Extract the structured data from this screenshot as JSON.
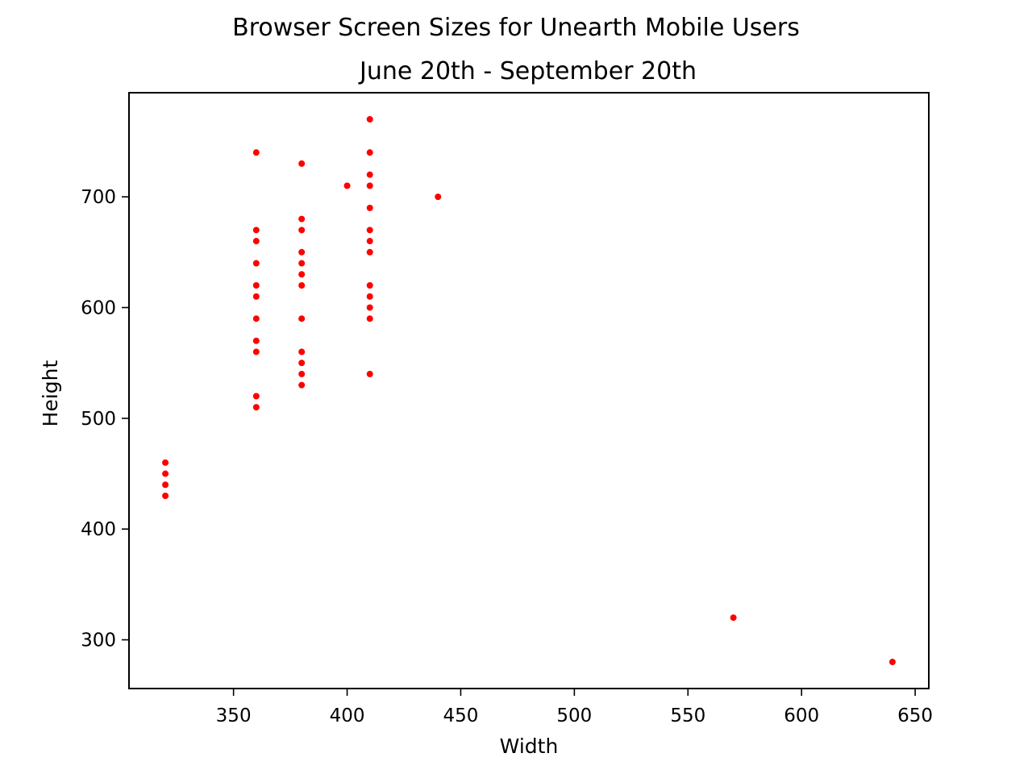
{
  "chart_data": {
    "type": "scatter",
    "title": "Browser Screen Sizes for Unearth Mobile Users",
    "subtitle": "June 20th - September 20th",
    "xlabel": "Width",
    "ylabel": "Height",
    "xlim": [
      304,
      656
    ],
    "ylim": [
      256,
      794
    ],
    "xticks": [
      350,
      400,
      450,
      500,
      550,
      600,
      650
    ],
    "yticks": [
      300,
      400,
      500,
      600,
      700
    ],
    "grid": false,
    "marker_color": "#ff0000",
    "points": [
      {
        "x": 320,
        "y": 460
      },
      {
        "x": 320,
        "y": 450
      },
      {
        "x": 320,
        "y": 440
      },
      {
        "x": 320,
        "y": 430
      },
      {
        "x": 360,
        "y": 740
      },
      {
        "x": 360,
        "y": 670
      },
      {
        "x": 360,
        "y": 660
      },
      {
        "x": 360,
        "y": 640
      },
      {
        "x": 360,
        "y": 620
      },
      {
        "x": 360,
        "y": 610
      },
      {
        "x": 360,
        "y": 590
      },
      {
        "x": 360,
        "y": 570
      },
      {
        "x": 360,
        "y": 560
      },
      {
        "x": 360,
        "y": 520
      },
      {
        "x": 360,
        "y": 510
      },
      {
        "x": 380,
        "y": 730
      },
      {
        "x": 380,
        "y": 680
      },
      {
        "x": 380,
        "y": 670
      },
      {
        "x": 380,
        "y": 650
      },
      {
        "x": 380,
        "y": 640
      },
      {
        "x": 380,
        "y": 630
      },
      {
        "x": 380,
        "y": 620
      },
      {
        "x": 380,
        "y": 590
      },
      {
        "x": 380,
        "y": 560
      },
      {
        "x": 380,
        "y": 550
      },
      {
        "x": 380,
        "y": 540
      },
      {
        "x": 380,
        "y": 530
      },
      {
        "x": 400,
        "y": 710
      },
      {
        "x": 410,
        "y": 770
      },
      {
        "x": 410,
        "y": 740
      },
      {
        "x": 410,
        "y": 720
      },
      {
        "x": 410,
        "y": 710
      },
      {
        "x": 410,
        "y": 690
      },
      {
        "x": 410,
        "y": 670
      },
      {
        "x": 410,
        "y": 660
      },
      {
        "x": 410,
        "y": 650
      },
      {
        "x": 410,
        "y": 620
      },
      {
        "x": 410,
        "y": 610
      },
      {
        "x": 410,
        "y": 600
      },
      {
        "x": 410,
        "y": 590
      },
      {
        "x": 410,
        "y": 540
      },
      {
        "x": 440,
        "y": 700
      },
      {
        "x": 570,
        "y": 320
      },
      {
        "x": 640,
        "y": 280
      }
    ]
  }
}
